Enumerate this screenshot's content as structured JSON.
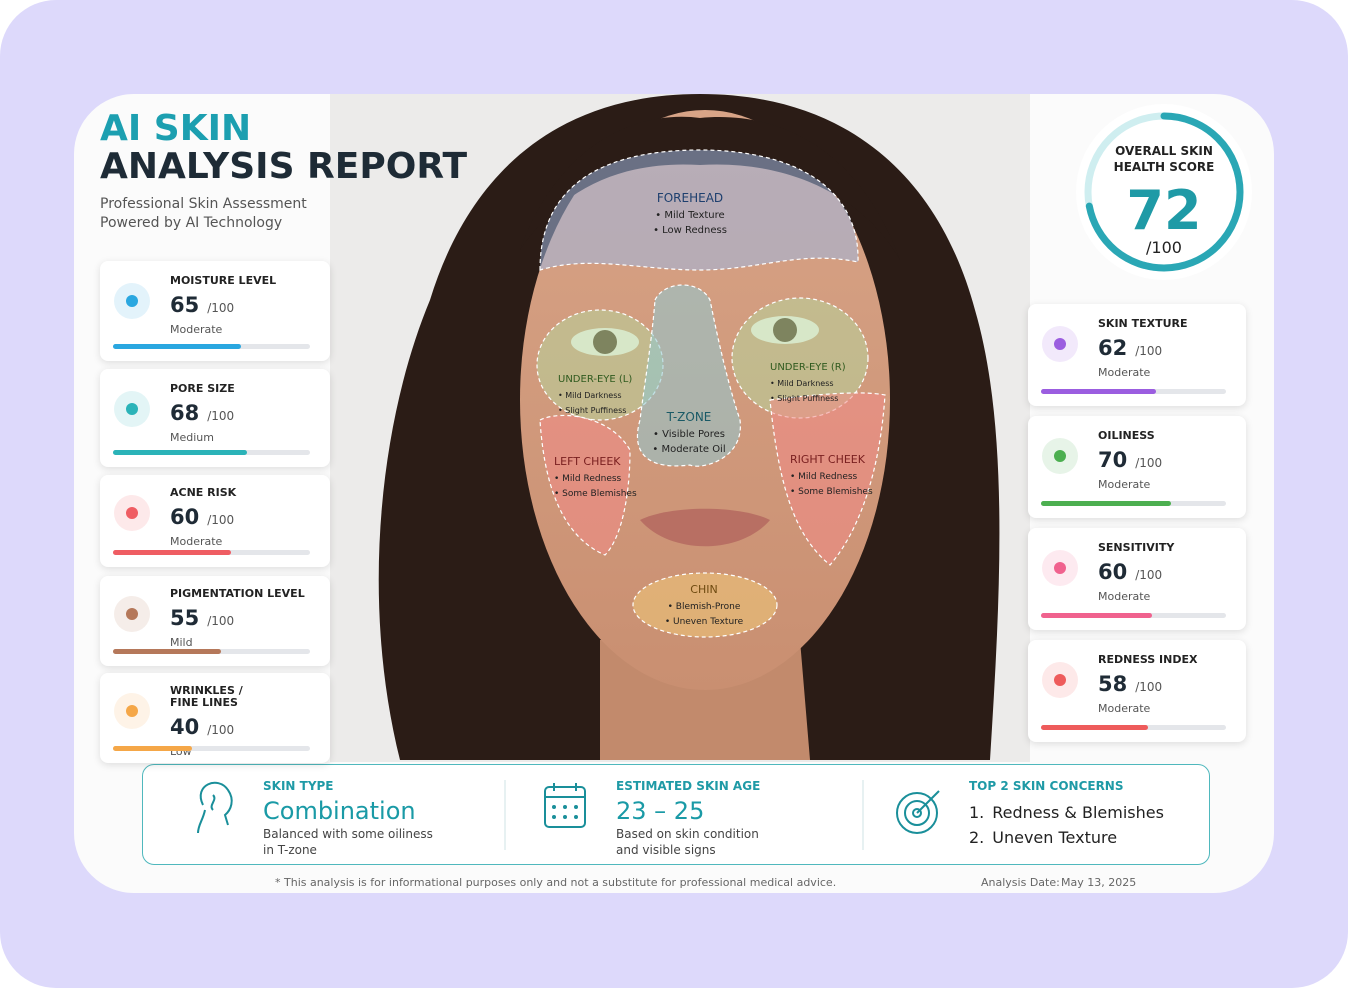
{
  "header": {
    "title_line1": "AI SKIN",
    "title_line2": "ANALYSIS REPORT",
    "subtitle": [
      "Professional Skin Assessment",
      "Powered by AI Technology"
    ]
  },
  "score": {
    "label": [
      "OVERALL SKIN",
      "HEALTH SCORE"
    ],
    "value": 72,
    "color": "#2aa7b5"
  },
  "scale": {
    "value": 100,
    "label": "/100"
  },
  "left_metrics": [
    {
      "label": [
        "MOISTURE LEVEL"
      ],
      "value": 65,
      "rating": "Moderate",
      "color": "#2aa7e0"
    },
    {
      "label": [
        "PORE SIZE"
      ],
      "value": 68,
      "rating": "Medium",
      "color": "#2bb3b8"
    },
    {
      "label": [
        "ACNE RISK"
      ],
      "value": 60,
      "rating": "Moderate",
      "color": "#ef5d63"
    },
    {
      "label": [
        "PIGMENTATION LEVEL"
      ],
      "value": 55,
      "rating": "Mild",
      "color": "#b5785a"
    },
    {
      "label": [
        "WRINKLES /",
        "FINE LINES"
      ],
      "value": 40,
      "rating": "Low",
      "color": "#f5a748"
    }
  ],
  "right_metrics": [
    {
      "label": [
        "SKIN TEXTURE"
      ],
      "value": 62,
      "rating": "Moderate",
      "color": "#9b5de0"
    },
    {
      "label": [
        "OILINESS"
      ],
      "value": 70,
      "rating": "Moderate",
      "color": "#4caf50"
    },
    {
      "label": [
        "SENSITIVITY"
      ],
      "value": 60,
      "rating": "Moderate",
      "color": "#f0628e"
    },
    {
      "label": [
        "REDNESS INDEX"
      ],
      "value": 58,
      "rating": "Moderate",
      "color": "#ee5b5b"
    }
  ],
  "zones": [
    {
      "name": "FOREHEAD",
      "notes": [
        "• Mild Texture",
        "• Low Redness"
      ]
    },
    {
      "name": "UNDER-EYE (L)",
      "notes": [
        "• Mild Darkness",
        "• Slight Puffiness"
      ]
    },
    {
      "name": "UNDER-EYE (R)",
      "notes": [
        "• Mild Darkness",
        "• Slight Puffiness"
      ]
    },
    {
      "name": "T-ZONE",
      "notes": [
        "• Visible Pores",
        "• Moderate Oil"
      ]
    },
    {
      "name": "LEFT CHEEK",
      "notes": [
        "• Mild Redness",
        "• Some Blemishes"
      ]
    },
    {
      "name": "RIGHT CHEEK",
      "notes": [
        "• Mild Redness",
        "• Some Blemishes"
      ]
    },
    {
      "name": "CHIN",
      "notes": [
        "• Blemish-Prone",
        "• Uneven Texture"
      ]
    }
  ],
  "summary": {
    "skin_type": {
      "label": "SKIN TYPE",
      "value": "Combination",
      "description": [
        "Balanced with some oiliness",
        "in T-zone"
      ]
    },
    "skin_age": {
      "label": "ESTIMATED SKIN AGE",
      "value": "23 – 25",
      "description": [
        "Based on skin condition",
        "and visible signs"
      ]
    },
    "concerns": {
      "label": "TOP 2 SKIN CONCERNS",
      "items": [
        {
          "number": "1.",
          "text": "Redness & Blemishes"
        },
        {
          "number": "2.",
          "text": "Uneven Texture"
        }
      ]
    }
  },
  "footer": {
    "disclaimer": "* This analysis is for informational purposes only and not a substitute for professional medical advice.",
    "date_label": "Analysis Date:",
    "date": "May 13, 2025"
  }
}
